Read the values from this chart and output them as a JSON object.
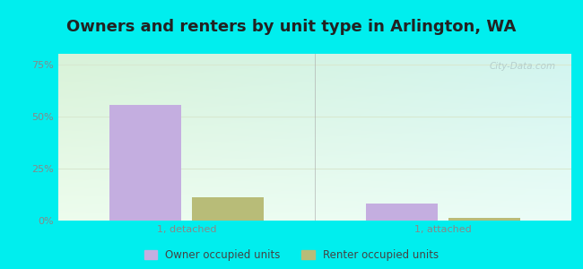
{
  "title": "Owners and renters by unit type in Arlington, WA",
  "categories": [
    "1, detached",
    "1, attached"
  ],
  "owner_values": [
    55.5,
    8.0
  ],
  "renter_values": [
    11.0,
    1.2
  ],
  "owner_color": "#c4aee0",
  "renter_color": "#b8bc78",
  "yticks": [
    0,
    25,
    50,
    75
  ],
  "ytick_labels": [
    "0%",
    "25%",
    "50%",
    "75%"
  ],
  "ylim": [
    0,
    80
  ],
  "bar_width": 0.28,
  "outer_bg": "#00eeee",
  "title_fontsize": 13,
  "watermark": "City-Data.com",
  "legend_labels": [
    "Owner occupied units",
    "Renter occupied units"
  ],
  "grid_color": "#d8e8d0",
  "tick_color": "#888888",
  "title_color": "#222222"
}
